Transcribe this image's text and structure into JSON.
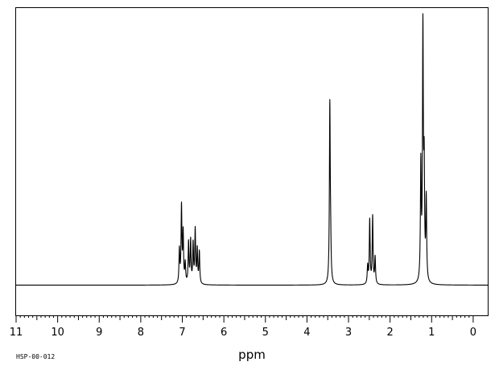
{
  "chart_data": {
    "type": "line",
    "title": "",
    "xlabel": "ppm",
    "ylabel": "",
    "spectrum_code": "HSP-00-012",
    "x_reversed": true,
    "xlim": [
      11.0,
      -0.35
    ],
    "ylim": [
      -0.17,
      1.56
    ],
    "grid": false,
    "x_ticks": [
      {
        "value": 11,
        "label": "11"
      },
      {
        "value": 10,
        "label": "10"
      },
      {
        "value": 9,
        "label": "9"
      },
      {
        "value": 8,
        "label": "8"
      },
      {
        "value": 7,
        "label": "7"
      },
      {
        "value": 6,
        "label": "6"
      },
      {
        "value": 5,
        "label": "5"
      },
      {
        "value": 4,
        "label": "4"
      },
      {
        "value": 3,
        "label": "3"
      },
      {
        "value": 2,
        "label": "2"
      },
      {
        "value": 1,
        "label": "1"
      },
      {
        "value": 0,
        "label": "0"
      }
    ],
    "peaks": [
      {
        "ppm": 7.07,
        "intensity": 0.19
      },
      {
        "ppm": 7.02,
        "intensity": 0.43
      },
      {
        "ppm": 6.98,
        "intensity": 0.28
      },
      {
        "ppm": 6.93,
        "intensity": 0.11
      },
      {
        "ppm": 6.85,
        "intensity": 0.23
      },
      {
        "ppm": 6.8,
        "intensity": 0.24
      },
      {
        "ppm": 6.74,
        "intensity": 0.22
      },
      {
        "ppm": 6.69,
        "intensity": 0.3
      },
      {
        "ppm": 6.64,
        "intensity": 0.19
      },
      {
        "ppm": 6.59,
        "intensity": 0.18
      },
      {
        "ppm": 3.45,
        "intensity": 1.0
      },
      {
        "ppm": 3.43,
        "intensity": 0.17
      },
      {
        "ppm": 2.54,
        "intensity": 0.1
      },
      {
        "ppm": 2.49,
        "intensity": 0.36
      },
      {
        "ppm": 2.42,
        "intensity": 0.38
      },
      {
        "ppm": 2.36,
        "intensity": 0.15
      },
      {
        "ppm": 1.26,
        "intensity": 0.65
      },
      {
        "ppm": 1.21,
        "intensity": 1.4
      },
      {
        "ppm": 1.18,
        "intensity": 0.6
      },
      {
        "ppm": 1.13,
        "intensity": 0.46
      }
    ]
  }
}
